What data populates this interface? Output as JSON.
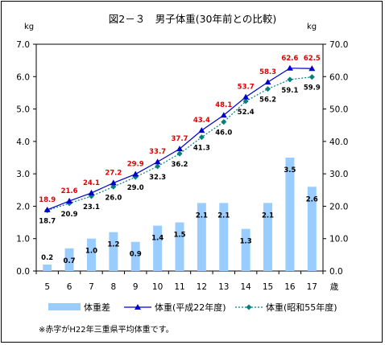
{
  "title": "図2－３　男子体重(30年前との比較)",
  "left_unit": "kg",
  "right_unit": "kg",
  "x_suffix": "歳",
  "footnote": "※赤字がH22年三重県平均体重です。",
  "colors": {
    "bar": "#99ccff",
    "line_h22": "#0000cc",
    "line_s55": "#008080",
    "label_h22": "#e00000"
  },
  "chart_data": {
    "type": "bar+line",
    "categories": [
      "5",
      "6",
      "7",
      "8",
      "9",
      "10",
      "11",
      "12",
      "13",
      "14",
      "15",
      "16",
      "17"
    ],
    "left_axis": {
      "min": 0,
      "max": 7,
      "step": 1,
      "tick_labels": [
        "0.0",
        "1.0",
        "2.0",
        "3.0",
        "4.0",
        "5.0",
        "6.0",
        "7.0"
      ]
    },
    "right_axis": {
      "min": 0,
      "max": 70,
      "step": 10,
      "tick_labels": [
        "0.0",
        "10.0",
        "20.0",
        "30.0",
        "40.0",
        "50.0",
        "60.0",
        "70.0"
      ]
    },
    "series": [
      {
        "name": "体重差",
        "type": "bar",
        "axis": "left",
        "values": [
          0.2,
          0.7,
          1.0,
          1.2,
          0.9,
          1.4,
          1.5,
          2.1,
          2.1,
          1.3,
          2.1,
          3.5,
          2.6
        ]
      },
      {
        "name": "体重(平成22年度)",
        "type": "line",
        "axis": "right",
        "values": [
          18.9,
          21.6,
          24.1,
          27.2,
          29.9,
          33.7,
          37.7,
          43.4,
          48.1,
          53.7,
          58.3,
          62.6,
          62.5
        ]
      },
      {
        "name": "体重(昭和55年度)",
        "type": "line",
        "axis": "right",
        "values": [
          18.7,
          20.9,
          23.1,
          26.0,
          29.0,
          32.3,
          36.2,
          41.3,
          46.0,
          52.4,
          56.2,
          59.1,
          59.9
        ]
      }
    ],
    "bar_labels": [
      "0.2",
      "0.7",
      "1.0",
      "1.2",
      "0.9",
      "1.4",
      "1.5",
      "2.1",
      "2.1",
      "1.3",
      "2.1",
      "3.5",
      "2.6"
    ],
    "h22_labels": [
      "18.9",
      "21.6",
      "24.1",
      "27.2",
      "29.9",
      "33.7",
      "37.7",
      "43.4",
      "48.1",
      "53.7",
      "58.3",
      "62.6",
      "62.5"
    ],
    "s55_labels": [
      "18.7",
      "20.9",
      "23.1",
      "26.0",
      "29.0",
      "32.3",
      "36.2",
      "41.3",
      "46.0",
      "52.4",
      "56.2",
      "59.1",
      "59.9"
    ],
    "legend": [
      "体重差",
      "体重(平成22年度)",
      "体重(昭和55年度)"
    ]
  }
}
